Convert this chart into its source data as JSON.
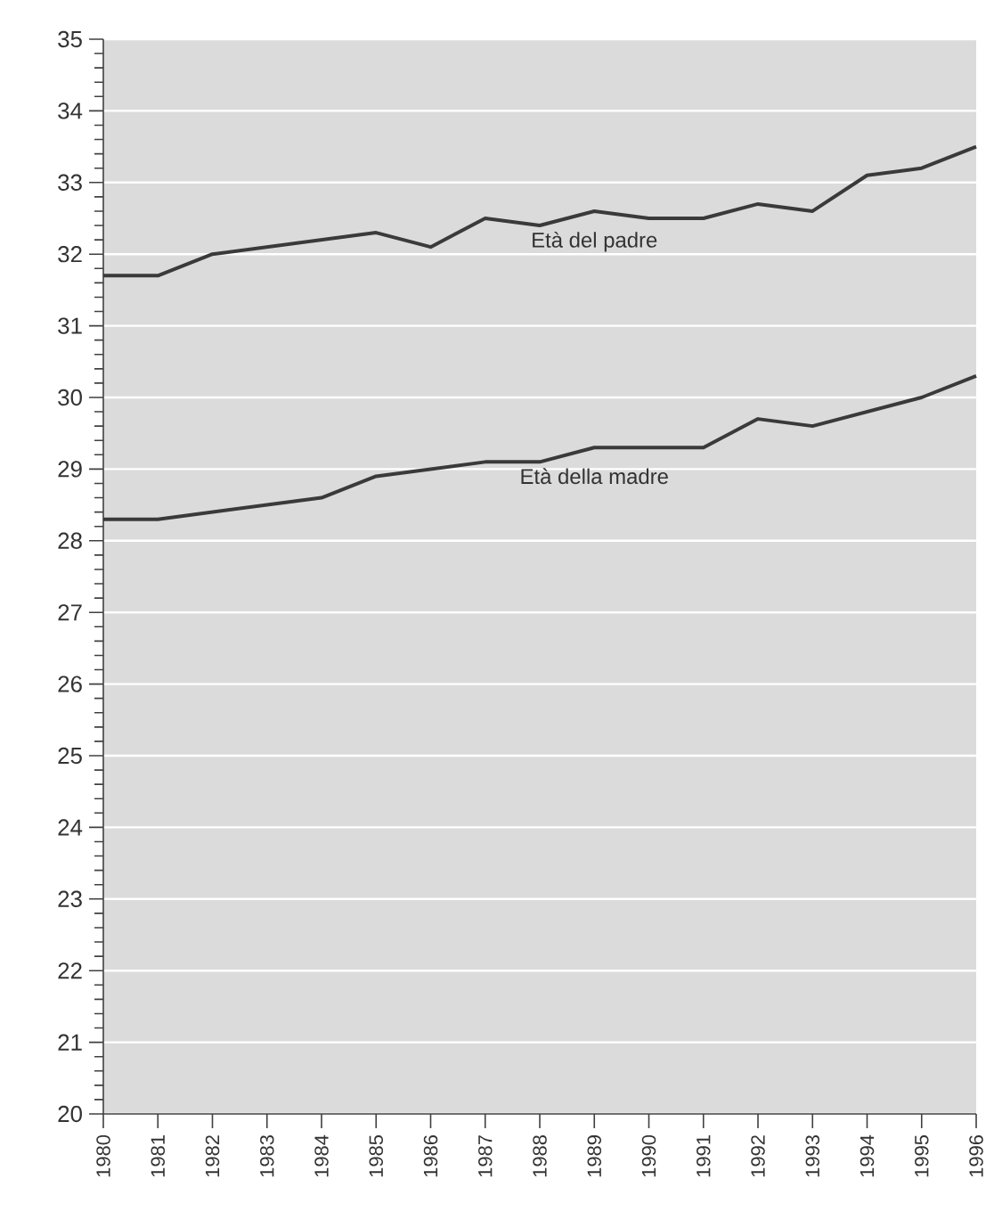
{
  "chart_data": {
    "type": "line",
    "x": [
      1980,
      1981,
      1982,
      1983,
      1984,
      1985,
      1986,
      1987,
      1988,
      1989,
      1990,
      1991,
      1992,
      1993,
      1994,
      1995,
      1996
    ],
    "series": [
      {
        "name": "Età del padre",
        "color": "#3a3a3a",
        "values": [
          31.7,
          31.7,
          32.0,
          32.1,
          32.2,
          32.3,
          32.1,
          32.5,
          32.4,
          32.6,
          32.5,
          32.5,
          32.7,
          32.6,
          33.1,
          33.2,
          33.5
        ]
      },
      {
        "name": "Età della madre",
        "color": "#3a3a3a",
        "values": [
          28.3,
          28.3,
          28.4,
          28.5,
          28.6,
          28.9,
          29.0,
          29.1,
          29.1,
          29.3,
          29.3,
          29.3,
          29.7,
          29.6,
          29.8,
          30.0,
          30.3
        ]
      }
    ],
    "xlim": [
      1980,
      1996
    ],
    "xticks": [
      1980,
      1981,
      1982,
      1983,
      1984,
      1985,
      1986,
      1987,
      1988,
      1989,
      1990,
      1991,
      1992,
      1993,
      1994,
      1995,
      1996
    ],
    "ylim": [
      20,
      35
    ],
    "yticks": [
      20,
      21,
      22,
      23,
      24,
      25,
      26,
      27,
      28,
      29,
      30,
      31,
      32,
      33,
      34,
      35
    ],
    "grid": "y",
    "legend": false,
    "marker": "none",
    "line_style": "solid"
  }
}
